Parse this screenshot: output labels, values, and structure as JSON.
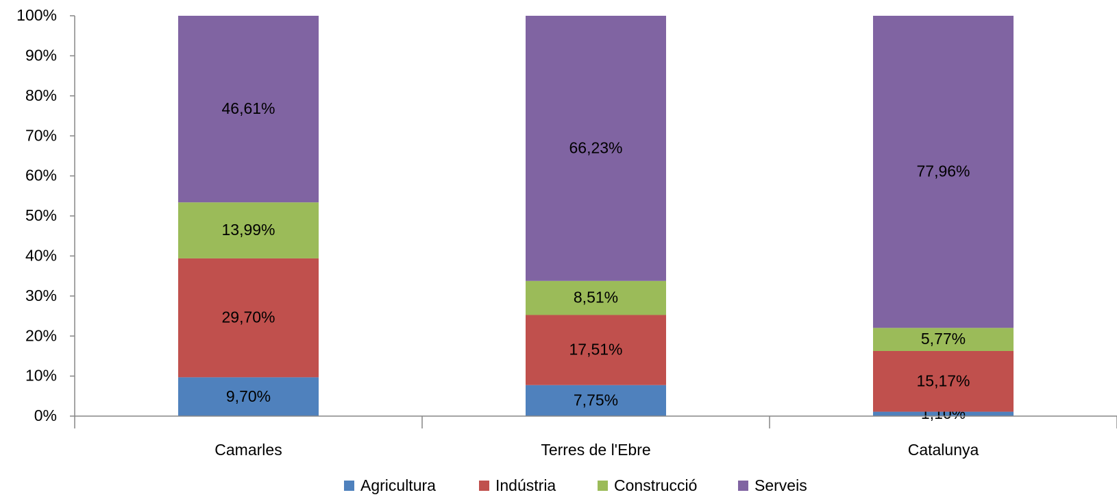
{
  "chart_data": {
    "type": "stacked_bar_100",
    "categories": [
      "Camarles",
      "Terres de l'Ebre",
      "Catalunya"
    ],
    "series": [
      {
        "name": "Agricultura",
        "color": "#4f81bd",
        "values": [
          9.7,
          7.75,
          1.1
        ],
        "value_labels": [
          "9,70%",
          "7,75%",
          "1,10%"
        ]
      },
      {
        "name": "Indústria",
        "color": "#c0504d",
        "values": [
          29.7,
          17.51,
          15.17
        ],
        "value_labels": [
          "29,70%",
          "17,51%",
          "15,17%"
        ]
      },
      {
        "name": "Construcció",
        "color": "#9bbb59",
        "values": [
          13.99,
          8.51,
          5.77
        ],
        "value_labels": [
          "13,99%",
          "8,51%",
          "5,77%"
        ]
      },
      {
        "name": "Serveis",
        "color": "#8064a2",
        "values": [
          46.61,
          66.23,
          77.96
        ],
        "value_labels": [
          "46,61%",
          "66,23%",
          "77,96%"
        ]
      }
    ],
    "ylim": [
      0,
      100
    ],
    "yticks": [
      {
        "value": 0,
        "label": "0%"
      },
      {
        "value": 10,
        "label": "10%"
      },
      {
        "value": 20,
        "label": "20%"
      },
      {
        "value": 30,
        "label": "30%"
      },
      {
        "value": 40,
        "label": "40%"
      },
      {
        "value": 50,
        "label": "50%"
      },
      {
        "value": 60,
        "label": "60%"
      },
      {
        "value": 70,
        "label": "70%"
      },
      {
        "value": 80,
        "label": "80%"
      },
      {
        "value": 90,
        "label": "90%"
      },
      {
        "value": 100,
        "label": "100%"
      }
    ],
    "grid": false,
    "legend": "bottom"
  }
}
